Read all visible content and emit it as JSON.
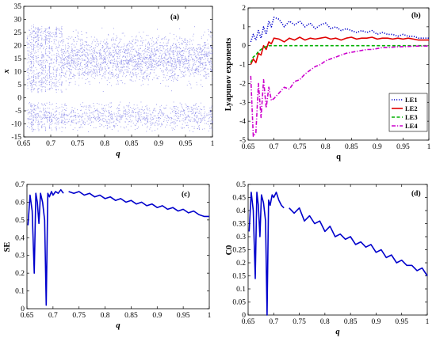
{
  "chart_data": [
    {
      "type": "scatter",
      "panel_label": "(a)",
      "xlabel": "q",
      "ylabel": "x",
      "xlim": [
        0.65,
        1
      ],
      "ylim": [
        -15,
        35
      ],
      "xticks": [
        "0.65",
        "0.7",
        "0.75",
        "0.8",
        "0.85",
        "0.9",
        "0.95",
        "1"
      ],
      "yticks": [
        "-15",
        "-10",
        "-5",
        "0",
        "5",
        "10",
        "15",
        "20",
        "25",
        "30",
        "35"
      ],
      "series": [
        {
          "color": "#3b3bd9",
          "description_bands": [
            {
              "q_range": [
                0.65,
                1
              ],
              "x_range": [
                3,
                27
              ]
            },
            {
              "q_range": [
                0.65,
                1
              ],
              "x_range": [
                -12,
                -2
              ]
            }
          ]
        }
      ]
    },
    {
      "type": "line",
      "panel_label": "(b)",
      "xlabel": "q",
      "ylabel": "Lyapunov exponents",
      "xlim": [
        0.65,
        1
      ],
      "ylim": [
        -5,
        2
      ],
      "xticks": [
        "0.65",
        "0.7",
        "0.75",
        "0.8",
        "0.85",
        "0.9",
        "0.95",
        "1"
      ],
      "yticks": [
        "-5",
        "-4",
        "-3",
        "-2",
        "-1",
        "0",
        "1",
        "2"
      ],
      "legend": "lower-right",
      "x": [
        0.655,
        0.66,
        0.665,
        0.67,
        0.675,
        0.68,
        0.685,
        0.69,
        0.695,
        0.7,
        0.71,
        0.72,
        0.73,
        0.74,
        0.75,
        0.76,
        0.77,
        0.78,
        0.79,
        0.8,
        0.81,
        0.82,
        0.83,
        0.84,
        0.85,
        0.86,
        0.87,
        0.88,
        0.89,
        0.9,
        0.91,
        0.92,
        0.93,
        0.94,
        0.95,
        0.96,
        0.97,
        0.98,
        0.99,
        1.0
      ],
      "series": [
        {
          "name": "LE1",
          "color": "#0000cc",
          "style": "dotted",
          "values": [
            0.2,
            0.6,
            0.3,
            0.8,
            0.4,
            1.0,
            0.6,
            1.3,
            1.0,
            1.5,
            1.4,
            1.0,
            1.3,
            1.1,
            1.3,
            1.0,
            1.2,
            0.9,
            1.1,
            1.2,
            0.9,
            1.0,
            0.8,
            0.9,
            0.8,
            0.7,
            0.8,
            0.7,
            0.8,
            0.6,
            0.7,
            0.6,
            0.6,
            0.5,
            0.6,
            0.5,
            0.5,
            0.4,
            0.4,
            0.4
          ]
        },
        {
          "name": "LE2",
          "color": "#e00000",
          "style": "solid",
          "values": [
            -1.0,
            -0.7,
            -0.9,
            -0.4,
            -0.5,
            0.0,
            -0.2,
            0.2,
            0.1,
            0.4,
            0.35,
            0.2,
            0.4,
            0.3,
            0.45,
            0.3,
            0.4,
            0.35,
            0.4,
            0.45,
            0.35,
            0.4,
            0.3,
            0.4,
            0.45,
            0.35,
            0.4,
            0.4,
            0.45,
            0.35,
            0.4,
            0.4,
            0.35,
            0.4,
            0.35,
            0.4,
            0.35,
            0.3,
            0.3,
            0.3
          ]
        },
        {
          "name": "LE3",
          "color": "#00b000",
          "style": "dashed",
          "values": [
            -0.9,
            -0.6,
            -0.5,
            -0.3,
            -0.2,
            -0.1,
            -0.05,
            0.0,
            0.0,
            0.0,
            0.0,
            0.0,
            0.0,
            0.0,
            0.0,
            0.0,
            0.0,
            0.0,
            0.0,
            0.0,
            0.0,
            0.0,
            0.0,
            0.0,
            0.0,
            0.0,
            0.0,
            0.0,
            0.0,
            0.0,
            0.0,
            0.0,
            0.0,
            0.0,
            0.0,
            0.0,
            0.0,
            0.0,
            0.0,
            0.0
          ]
        },
        {
          "name": "LE4",
          "color": "#cc00cc",
          "style": "dashdot",
          "values": [
            -1.6,
            -4.8,
            -4.6,
            -2.0,
            -3.8,
            -1.8,
            -3.3,
            -2.2,
            -2.9,
            -2.8,
            -2.5,
            -2.2,
            -2.3,
            -1.9,
            -1.8,
            -1.5,
            -1.3,
            -1.1,
            -1.0,
            -0.8,
            -0.7,
            -0.6,
            -0.5,
            -0.4,
            -0.35,
            -0.3,
            -0.25,
            -0.2,
            -0.2,
            -0.15,
            -0.1,
            -0.1,
            -0.08,
            -0.06,
            -0.05,
            -0.04,
            -0.03,
            -0.02,
            -0.02,
            -0.02
          ]
        }
      ]
    },
    {
      "type": "line",
      "panel_label": "(c)",
      "xlabel": "q",
      "ylabel": "SE",
      "xlim": [
        0.65,
        1
      ],
      "ylim": [
        0,
        0.7
      ],
      "xticks": [
        "0.65",
        "0.7",
        "0.75",
        "0.8",
        "0.85",
        "0.9",
        "0.95",
        "1"
      ],
      "yticks": [
        "0",
        "0.1",
        "0.2",
        "0.3",
        "0.4",
        "0.5",
        "0.6",
        "0.7"
      ],
      "x": [
        0.652,
        0.656,
        0.66,
        0.664,
        0.667,
        0.67,
        0.673,
        0.676,
        0.68,
        0.684,
        0.687,
        0.69,
        0.693,
        0.697,
        0.7,
        0.705,
        0.71,
        0.715,
        0.72,
        0.725,
        0.73,
        0.74,
        0.75,
        0.76,
        0.77,
        0.78,
        0.79,
        0.8,
        0.81,
        0.82,
        0.83,
        0.84,
        0.85,
        0.86,
        0.87,
        0.88,
        0.89,
        0.9,
        0.91,
        0.92,
        0.93,
        0.94,
        0.95,
        0.96,
        0.97,
        0.98,
        0.99,
        1.0
      ],
      "series": [
        {
          "color": "#0000cc",
          "values": [
            0.47,
            0.64,
            0.55,
            0.2,
            0.65,
            0.6,
            0.48,
            0.65,
            0.6,
            0.5,
            0.02,
            0.65,
            0.63,
            0.66,
            0.64,
            0.66,
            0.65,
            0.67,
            0.65,
            null,
            0.66,
            0.65,
            0.66,
            0.64,
            0.65,
            0.63,
            0.64,
            0.62,
            0.63,
            0.61,
            0.62,
            0.6,
            0.61,
            0.59,
            0.6,
            0.58,
            0.59,
            0.57,
            0.58,
            0.56,
            0.57,
            0.55,
            0.56,
            0.54,
            0.55,
            0.53,
            0.52,
            0.52
          ]
        }
      ]
    },
    {
      "type": "line",
      "panel_label": "(d)",
      "xlabel": "q",
      "ylabel": "C0",
      "xlim": [
        0.65,
        1
      ],
      "ylim": [
        0,
        0.5
      ],
      "xticks": [
        "0.65",
        "0.7",
        "0.75",
        "0.8",
        "0.85",
        "0.9",
        "0.95",
        "1"
      ],
      "yticks": [
        "0",
        "0.05",
        "0.1",
        "0.15",
        "0.2",
        "0.25",
        "0.3",
        "0.35",
        "0.4",
        "0.45",
        "0.5"
      ],
      "x": [
        0.652,
        0.656,
        0.66,
        0.664,
        0.667,
        0.67,
        0.673,
        0.676,
        0.68,
        0.684,
        0.687,
        0.69,
        0.693,
        0.697,
        0.7,
        0.705,
        0.71,
        0.715,
        0.72,
        0.725,
        0.73,
        0.74,
        0.75,
        0.76,
        0.77,
        0.78,
        0.79,
        0.8,
        0.81,
        0.82,
        0.83,
        0.84,
        0.85,
        0.86,
        0.87,
        0.88,
        0.89,
        0.9,
        0.91,
        0.92,
        0.93,
        0.94,
        0.95,
        0.96,
        0.97,
        0.98,
        0.99,
        1.0
      ],
      "series": [
        {
          "color": "#0000cc",
          "values": [
            0.32,
            0.47,
            0.4,
            0.14,
            0.47,
            0.42,
            0.3,
            0.46,
            0.43,
            0.36,
            0.0,
            0.44,
            0.42,
            0.46,
            0.45,
            0.47,
            0.44,
            0.42,
            0.41,
            null,
            0.41,
            0.39,
            0.41,
            0.36,
            0.38,
            0.35,
            0.36,
            0.32,
            0.34,
            0.3,
            0.31,
            0.29,
            0.3,
            0.27,
            0.28,
            0.26,
            0.27,
            0.24,
            0.25,
            0.22,
            0.23,
            0.2,
            0.21,
            0.19,
            0.19,
            0.17,
            0.18,
            0.15
          ]
        }
      ]
    }
  ]
}
